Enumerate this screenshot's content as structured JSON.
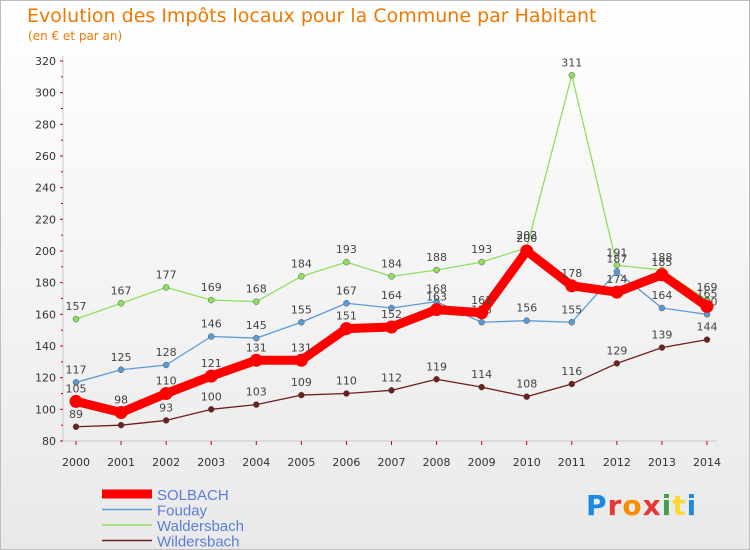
{
  "header": {
    "title": "Evolution des Impôts locaux pour la Commune par Habitant",
    "subtitle": "(en € et par an)"
  },
  "logo": {
    "text": "Proxiti",
    "parts": [
      "P",
      "r",
      "o",
      "x",
      "i",
      "t",
      "i"
    ],
    "colors": [
      "#1e88e5",
      "#e53935",
      "#fb8c00",
      "#e53935",
      "#43a047",
      "#fdd835",
      "#1e88e5"
    ]
  },
  "chart_data": {
    "type": "line",
    "title": "Evolution des Impôts locaux pour la Commune par Habitant",
    "subtitle": "(en € et par an)",
    "xlabel": "",
    "ylabel": "",
    "ylim": [
      80,
      320
    ],
    "yticks": [
      80,
      100,
      120,
      140,
      160,
      180,
      200,
      220,
      240,
      260,
      280,
      300,
      320
    ],
    "grid": false,
    "legend_position": "bottom-left",
    "x": [
      2000,
      2001,
      2002,
      2003,
      2004,
      2005,
      2006,
      2007,
      2008,
      2009,
      2010,
      2011,
      2012,
      2013,
      2014
    ],
    "series": [
      {
        "name": "Wildersbach",
        "color": "#6b1f1f",
        "values": [
          89,
          90,
          93,
          100,
          103,
          109,
          110,
          112,
          119,
          114,
          108,
          116,
          129,
          139,
          144
        ],
        "labels": [
          "89",
          "90",
          "93",
          "100",
          "103",
          "109",
          "110",
          "112",
          "119",
          "114",
          "108",
          "116",
          "129",
          "139",
          "144"
        ]
      },
      {
        "name": "Waldersbach",
        "color": "#90e060",
        "values": [
          157,
          167,
          177,
          169,
          168,
          184,
          193,
          184,
          188,
          193,
          202,
          311,
          191,
          188,
          169
        ],
        "labels": [
          "157",
          "167",
          "177",
          "169",
          "168",
          "184",
          "193",
          "184",
          "188",
          "193",
          "202",
          "311",
          "191",
          "188",
          "169"
        ]
      },
      {
        "name": "Fouday",
        "color": "#5b9bd5",
        "values": [
          117,
          125,
          128,
          146,
          145,
          155,
          167,
          164,
          168,
          155,
          156,
          155,
          187,
          164,
          160
        ],
        "labels": [
          "117",
          "125",
          "128",
          "146",
          "145",
          "155",
          "167",
          "164",
          "168",
          "155",
          "156",
          "155",
          "187",
          "164",
          "160"
        ]
      },
      {
        "name": "SOLBACH",
        "color": "#ff0000",
        "values": [
          105,
          98,
          110,
          121,
          131,
          131,
          151,
          152,
          163,
          161,
          200,
          178,
          174,
          185,
          165
        ],
        "labels": [
          "105",
          "98",
          "110",
          "121",
          "131",
          "131",
          "151",
          "152",
          "163",
          "161",
          "200",
          "178",
          "174",
          "185",
          "165"
        ]
      }
    ],
    "legend": [
      "SOLBACH",
      "Fouday",
      "Waldersbach",
      "Wildersbach"
    ]
  }
}
